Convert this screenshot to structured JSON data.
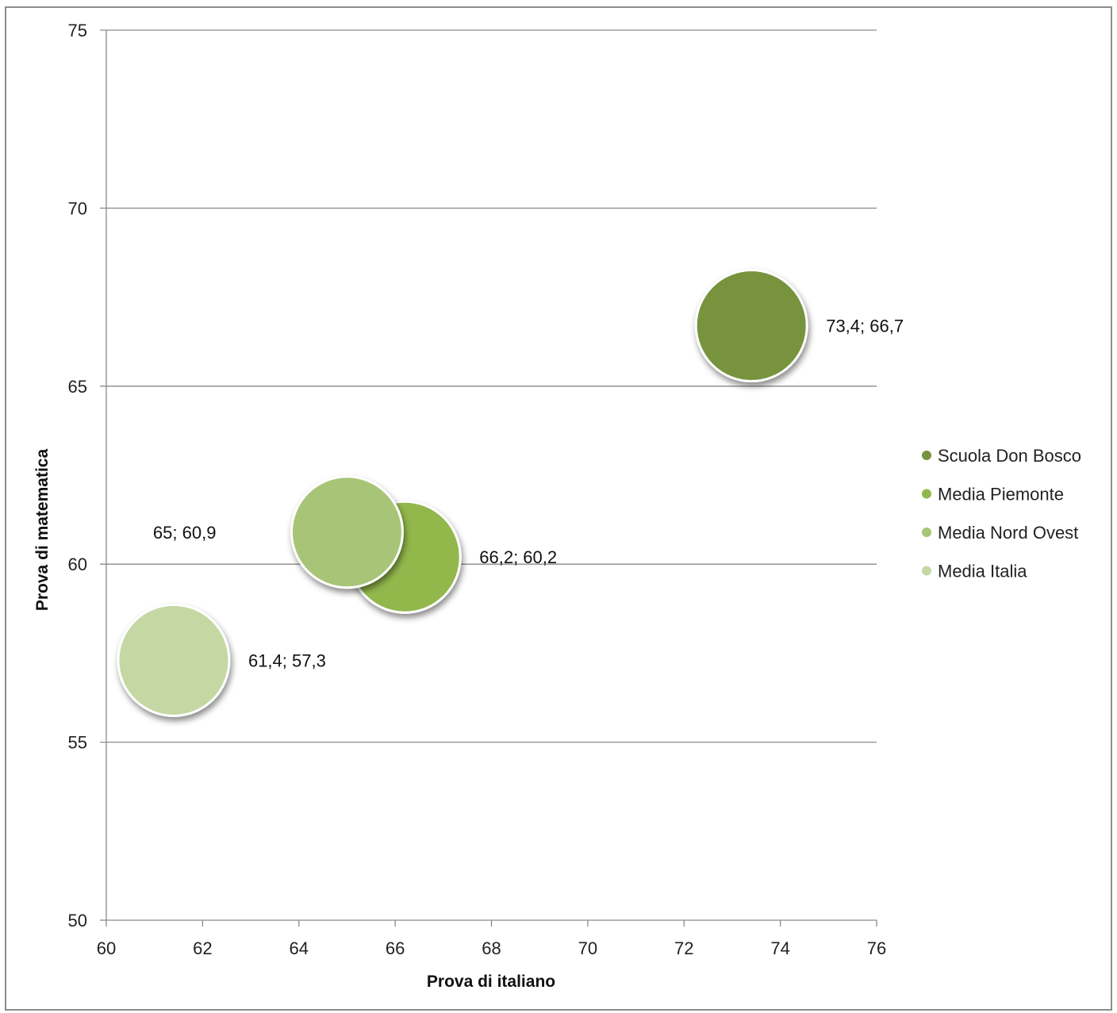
{
  "chart_data": {
    "type": "bubble",
    "xlabel": "Prova di italiano",
    "ylabel": "Prova di matematica",
    "xlim": [
      60,
      76
    ],
    "ylim": [
      50,
      75
    ],
    "xticks": [
      60,
      62,
      64,
      66,
      68,
      70,
      72,
      74,
      76
    ],
    "yticks": [
      50,
      55,
      60,
      65,
      70,
      75
    ],
    "grid": "horizontal",
    "legend_position": "right",
    "series": [
      {
        "name": "Scuola Don Bosco",
        "x": 73.4,
        "y": 66.7,
        "label": "73,4; 66,7",
        "color": "#77933c"
      },
      {
        "name": "Media Piemonte",
        "x": 66.2,
        "y": 60.2,
        "label": "66,2; 60,2",
        "color": "#92b74c"
      },
      {
        "name": "Media Nord Ovest",
        "x": 65,
        "y": 60.9,
        "label": "65; 60,9",
        "color": "#a8c577"
      },
      {
        "name": "Media Italia",
        "x": 61.4,
        "y": 57.3,
        "label": "61,4; 57,3",
        "color": "#c5d8a4"
      }
    ]
  }
}
